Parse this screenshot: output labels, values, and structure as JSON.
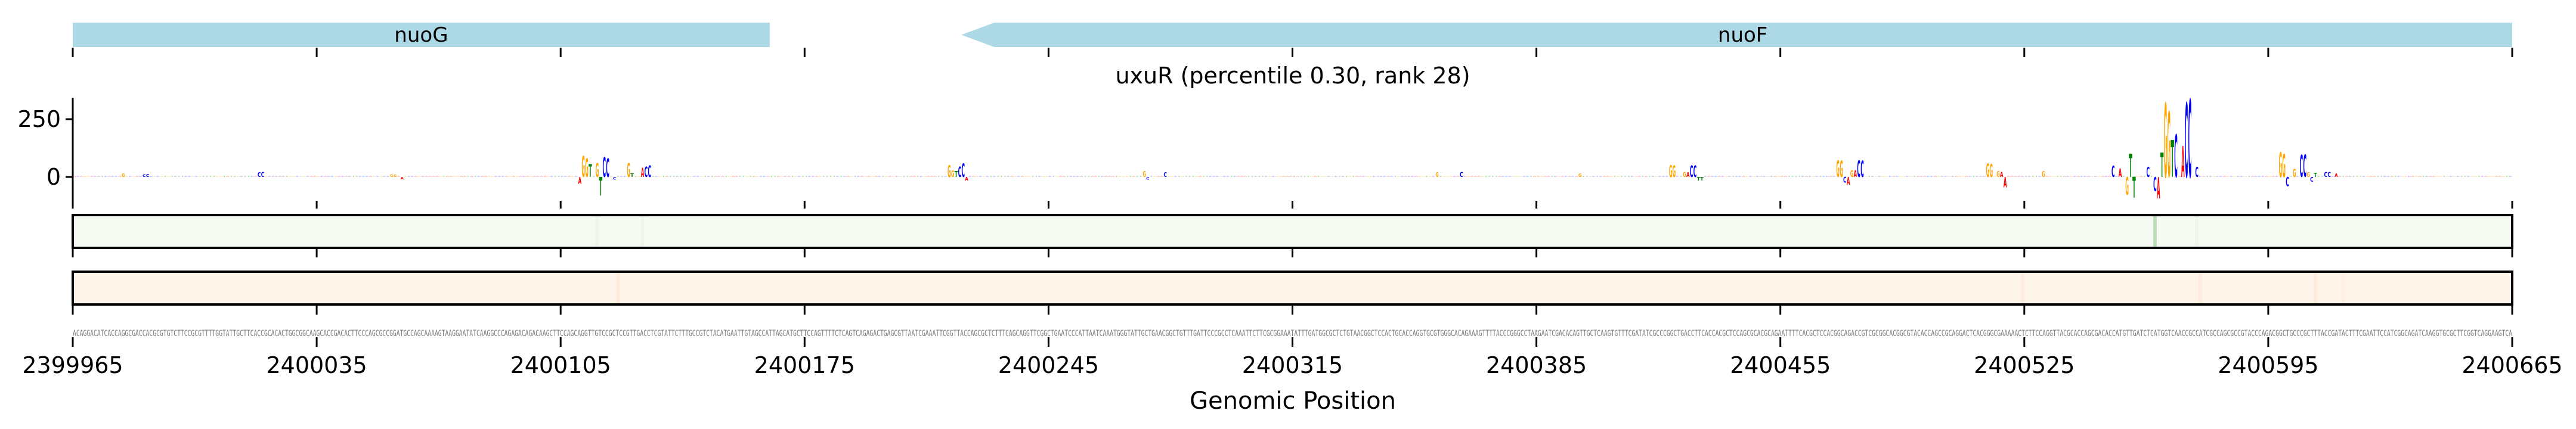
{
  "chart_data": {
    "type": "sequence-logo-track",
    "title": "uxuR (percentile 0.30, rank 28)",
    "xlabel": "Genomic Position",
    "xlim": [
      2399965,
      2400665
    ],
    "xticks": [
      2399965,
      2400035,
      2400105,
      2400175,
      2400245,
      2400315,
      2400385,
      2400455,
      2400525,
      2400595,
      2400665
    ],
    "xtick_labels": [
      "2399965",
      "2400035",
      "2400105",
      "2400175",
      "2400245",
      "2400315",
      "2400385",
      "2400455",
      "2400525",
      "2400595",
      "2400665"
    ],
    "logo_ylim": [
      -103,
      343
    ],
    "logo_yticks": [
      0,
      250
    ],
    "logo_ytick_labels": [
      "0",
      "250"
    ],
    "base_colors": {
      "A": "#ff0000",
      "C": "#0000ff",
      "G": "#ffa500",
      "T": "#008000"
    },
    "genes": [
      {
        "name": "nuoG",
        "start": 2399965,
        "end": 2400165,
        "strand": "+",
        "color": "#add8e6"
      },
      {
        "name": "nuoF",
        "start": 2400220,
        "end": 2400665,
        "strand": "-",
        "color": "#add8e6"
      }
    ],
    "sequence": "ACAGGACATCACCAGGCGACCACGCGTGTCTTCCGCGTTTTGGTATTGCTTCACCGCACACTGGCGGCAAGCACCGACACTTCCCAGCGCCGGATGCCAGCAAAAGTAAGGAATATCAAGGCCCAGAGACAGACAAGCTTCCAGCAGGTTGTCCGCTCCGTTGACCTCGTATTCTTTGCCGTCTACATGAATTGTAGCCATTAGCATGCTTCCAGTTTTCTCAGTCAGAGACTGAGCGTTAATCGAAATTCGGTTACCAGCGCTCTTTCAGCAGGTTCGGCTGAATCCCATTAATCAAATGGGTATTGCTGAACGGCTGTTTGATTCCCGCCTCAAATTCTTCGCGGAAATATTTGATGGCGCTCTGTAACGGCTCCACTGCACCAGGTGCGTGGGCACAGAAAGTTTTACCCGGGCCTAAGAATCGACACAGTTGCTCAAGTGTTTCGATATCGCCCGGCTGACCTTCACCACGCTCCAGCGCACGCAGAATTTTCACGCTCCACGGCAGACCGTCGCGGCACGGCGTACACCAGCCGCAGGACTCACGGGCGAAAAACTCTTCCAGGTTACGCACCAGCGACACCATGTTGATCTCATGGTCAACCGCCATCGCCAGCGCCGTACCCAGACGGCTGCCCGCTTTACCGATACTTTCGAATTCCATCGGCAGATCAAGGTGCGCTTCGGTCAGGAAGTCA",
    "logo_peaks": [
      {
        "i": 14,
        "base": "G",
        "value": 15
      },
      {
        "i": 20,
        "base": "C",
        "value": 12
      },
      {
        "i": 21,
        "base": "C",
        "value": 14
      },
      {
        "i": 53,
        "base": "C",
        "value": 20
      },
      {
        "i": 54,
        "base": "C",
        "value": 22
      },
      {
        "i": 91,
        "base": "G",
        "value": 12
      },
      {
        "i": 92,
        "base": "G",
        "value": 10
      },
      {
        "i": 94,
        "base": "A",
        "value": -10
      },
      {
        "i": 145,
        "base": "A",
        "value": -30
      },
      {
        "i": 146,
        "base": "G",
        "value": 90
      },
      {
        "i": 147,
        "base": "G",
        "value": 80
      },
      {
        "i": 148,
        "base": "T",
        "value": 55
      },
      {
        "i": 150,
        "base": "G",
        "value": 60
      },
      {
        "i": 151,
        "base": "T",
        "value": -80
      },
      {
        "i": 152,
        "base": "C",
        "value": 85
      },
      {
        "i": 153,
        "base": "C",
        "value": 80
      },
      {
        "i": 155,
        "base": "C",
        "value": -12
      },
      {
        "i": 159,
        "base": "G",
        "value": 60
      },
      {
        "i": 160,
        "base": "T",
        "value": 15
      },
      {
        "i": 163,
        "base": "A",
        "value": 40
      },
      {
        "i": 164,
        "base": "C",
        "value": 45
      },
      {
        "i": 165,
        "base": "C",
        "value": 50
      },
      {
        "i": 251,
        "base": "G",
        "value": 52
      },
      {
        "i": 252,
        "base": "G",
        "value": 28
      },
      {
        "i": 253,
        "base": "T",
        "value": 25
      },
      {
        "i": 254,
        "base": "C",
        "value": 45
      },
      {
        "i": 255,
        "base": "C",
        "value": 58
      },
      {
        "i": 256,
        "base": "A",
        "value": -15
      },
      {
        "i": 307,
        "base": "G",
        "value": 25
      },
      {
        "i": 308,
        "base": "C",
        "value": -12
      },
      {
        "i": 313,
        "base": "C",
        "value": 20
      },
      {
        "i": 391,
        "base": "G",
        "value": 20
      },
      {
        "i": 398,
        "base": "C",
        "value": 22
      },
      {
        "i": 432,
        "base": "G",
        "value": 15
      },
      {
        "i": 458,
        "base": "G",
        "value": 52
      },
      {
        "i": 459,
        "base": "G",
        "value": 50
      },
      {
        "i": 462,
        "base": "G",
        "value": 22
      },
      {
        "i": 463,
        "base": "A",
        "value": 20
      },
      {
        "i": 464,
        "base": "C",
        "value": 50
      },
      {
        "i": 465,
        "base": "C",
        "value": 51
      },
      {
        "i": 466,
        "base": "T",
        "value": -15
      },
      {
        "i": 467,
        "base": "T",
        "value": -15
      },
      {
        "i": 506,
        "base": "G",
        "value": 72
      },
      {
        "i": 507,
        "base": "G",
        "value": 70
      },
      {
        "i": 508,
        "base": "C",
        "value": -25
      },
      {
        "i": 509,
        "base": "A",
        "value": -33
      },
      {
        "i": 510,
        "base": "G",
        "value": 30
      },
      {
        "i": 511,
        "base": "A",
        "value": 30
      },
      {
        "i": 512,
        "base": "C",
        "value": 72
      },
      {
        "i": 513,
        "base": "C",
        "value": 70
      },
      {
        "i": 549,
        "base": "G",
        "value": 58
      },
      {
        "i": 550,
        "base": "G",
        "value": 55
      },
      {
        "i": 552,
        "base": "G",
        "value": 25
      },
      {
        "i": 553,
        "base": "A",
        "value": 22
      },
      {
        "i": 554,
        "base": "A",
        "value": -45
      },
      {
        "i": 565,
        "base": "G",
        "value": 25
      },
      {
        "i": 585,
        "base": "C",
        "value": 49
      },
      {
        "i": 587,
        "base": "A",
        "value": 36
      },
      {
        "i": 589,
        "base": "G",
        "value": -77
      },
      {
        "i": 590,
        "base": "T",
        "value": 100
      },
      {
        "i": 591,
        "base": "T",
        "value": -90
      },
      {
        "i": 595,
        "base": "C",
        "value": 44
      },
      {
        "i": 597,
        "base": "C",
        "value": -60
      },
      {
        "i": 598,
        "base": "A",
        "value": -93
      },
      {
        "i": 599,
        "base": "T",
        "value": 105
      },
      {
        "i": 600,
        "base": "G",
        "value": 320
      },
      {
        "i": 601,
        "base": "G",
        "value": 285
      },
      {
        "i": 602,
        "base": "T",
        "value": 160
      },
      {
        "i": 603,
        "base": "C",
        "value": 185
      },
      {
        "i": 605,
        "base": "A",
        "value": 135
      },
      {
        "i": 606,
        "base": "C",
        "value": 322
      },
      {
        "i": 607,
        "base": "C",
        "value": 337
      },
      {
        "i": 609,
        "base": "C",
        "value": 43
      },
      {
        "i": 633,
        "base": "G",
        "value": 108
      },
      {
        "i": 634,
        "base": "G",
        "value": 100
      },
      {
        "i": 635,
        "base": "C",
        "value": -40
      },
      {
        "i": 637,
        "base": "G",
        "value": 35
      },
      {
        "i": 639,
        "base": "C",
        "value": 95
      },
      {
        "i": 640,
        "base": "C",
        "value": 98
      },
      {
        "i": 641,
        "base": "G",
        "value": 20
      },
      {
        "i": 642,
        "base": "C",
        "value": -20
      },
      {
        "i": 643,
        "base": "T",
        "value": 18
      },
      {
        "i": 646,
        "base": "C",
        "value": 22
      },
      {
        "i": 647,
        "base": "C",
        "value": 22
      },
      {
        "i": 649,
        "base": "A",
        "value": 15
      }
    ],
    "green_track": {
      "base_color": "#f5faf2",
      "highlight_color": "#2ca02c",
      "highlights": [
        {
          "i": 597,
          "intensity": 0.3
        },
        {
          "i": 150,
          "intensity": 0.04
        },
        {
          "i": 163,
          "intensity": 0.04
        },
        {
          "i": 609,
          "intensity": 0.04
        }
      ]
    },
    "orange_track": {
      "base_color": "#fff4ea",
      "highlight_color": "#fd8d3c",
      "highlights": [
        {
          "i": 156,
          "intensity": 0.08
        },
        {
          "i": 559,
          "intensity": 0.07
        },
        {
          "i": 610,
          "intensity": 0.08
        },
        {
          "i": 643,
          "intensity": 0.08
        },
        {
          "i": 651,
          "intensity": 0.05
        }
      ]
    }
  }
}
